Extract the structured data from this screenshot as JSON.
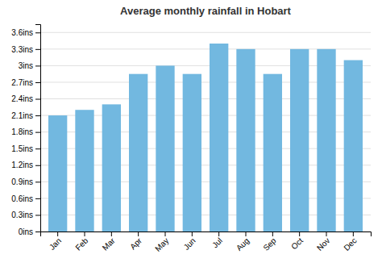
{
  "chart_data": {
    "type": "bar",
    "title": "Average monthly rainfall in Hobart",
    "categories": [
      "Jan",
      "Feb",
      "Mar",
      "Apr",
      "May",
      "Jun",
      "Jul",
      "Aug",
      "Sep",
      "Oct",
      "Nov",
      "Dec"
    ],
    "values": [
      2.1,
      2.2,
      2.3,
      2.85,
      3.0,
      2.85,
      3.4,
      3.3,
      2.85,
      3.3,
      3.3,
      3.1
    ],
    "color": "#72b8e0",
    "ylim": [
      0,
      3.75
    ],
    "yticks": [
      {
        "value": 0,
        "label": "0ins"
      },
      {
        "value": 0.3,
        "label": "0.3ins"
      },
      {
        "value": 0.6,
        "label": "0.6ins"
      },
      {
        "value": 0.9,
        "label": "0.9ins"
      },
      {
        "value": 1.2,
        "label": "1.2ins"
      },
      {
        "value": 1.5,
        "label": "1.5ins"
      },
      {
        "value": 1.8,
        "label": "1.8ins"
      },
      {
        "value": 2.1,
        "label": "2.1ins"
      },
      {
        "value": 2.4,
        "label": "2.4ins"
      },
      {
        "value": 2.7,
        "label": "2.7ins"
      },
      {
        "value": 3.0,
        "label": "3ins"
      },
      {
        "value": 3.3,
        "label": "3.3ins"
      },
      {
        "value": 3.6,
        "label": "3.6ins"
      }
    ],
    "grid": true
  }
}
